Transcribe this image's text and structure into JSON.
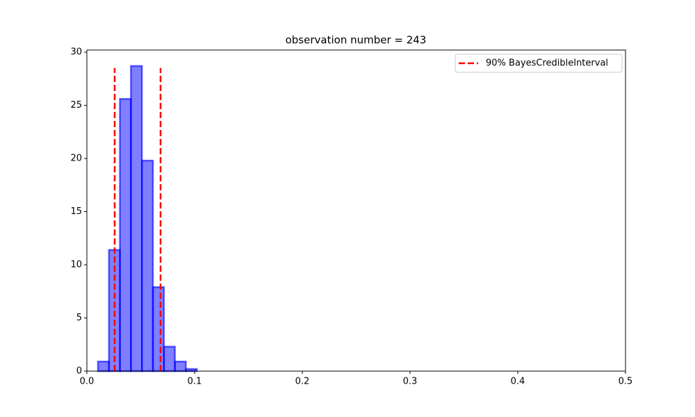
{
  "chart_data": {
    "type": "histogram",
    "title": "observation number = 243",
    "bins": [
      0.0103,
      0.0205,
      0.0307,
      0.0409,
      0.0511,
      0.0613,
      0.0715,
      0.0817,
      0.0919,
      0.1021
    ],
    "counts": [
      0.9,
      11.4,
      25.6,
      28.7,
      19.8,
      7.9,
      2.3,
      0.9,
      0.2
    ],
    "color": "#0000ff",
    "alpha": 0.5,
    "vlines": {
      "name": "90% BayesCredibleInterval",
      "color": "#ff0000",
      "x": [
        0.0258,
        0.0684
      ],
      "ymin": 0,
      "ymax": 28.5
    },
    "xlim": [
      0,
      0.5
    ],
    "xticks": [
      {
        "value": 0,
        "label": "0.0"
      },
      0.1,
      0.2,
      0.3,
      0.4,
      0.5
    ],
    "ylim": [
      0,
      30.2
    ],
    "yticks": [
      0,
      5,
      10,
      15,
      20,
      25,
      30
    ],
    "legend": "upper right",
    "grid": false
  }
}
